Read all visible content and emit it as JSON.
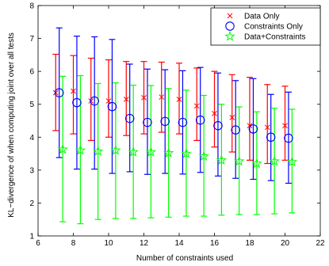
{
  "chart_data": {
    "type": "scatter",
    "title": "",
    "xlabel": "Number of constraints used",
    "ylabel": "KL−divergence of when computing joint over all tests",
    "xlim": [
      6,
      22
    ],
    "ylim": [
      1,
      8
    ],
    "xticks": [
      "6",
      "8",
      "10",
      "12",
      "14",
      "16",
      "18",
      "20",
      "22"
    ],
    "yticks": [
      "1",
      "2",
      "3",
      "4",
      "5",
      "6",
      "7",
      "8"
    ],
    "grid": false,
    "legend_position": "top-right",
    "series": [
      {
        "name": "Data Only",
        "marker": "x",
        "color": "#ff0000",
        "x": [
          7,
          8,
          9,
          10,
          11,
          12,
          13,
          14,
          15,
          16,
          17,
          18,
          19,
          20
        ],
        "y": [
          5.35,
          5.4,
          5.1,
          5.1,
          5.15,
          5.2,
          5.22,
          5.15,
          4.95,
          4.72,
          4.6,
          4.35,
          4.3,
          4.35
        ],
        "err_low": [
          4.2,
          4.1,
          3.9,
          4.0,
          4.05,
          4.1,
          4.15,
          4.1,
          3.9,
          3.7,
          3.55,
          3.3,
          3.2,
          3.3
        ],
        "err_high": [
          6.52,
          6.48,
          6.4,
          6.35,
          6.3,
          6.3,
          6.28,
          6.25,
          6.1,
          6.0,
          5.9,
          5.82,
          5.6,
          5.55
        ]
      },
      {
        "name": "Constraints Only",
        "marker": "o",
        "color": "#0000ff",
        "x": [
          7.2,
          8.2,
          9.2,
          10.2,
          11.2,
          12.2,
          13.2,
          14.2,
          15.2,
          16.2,
          17.2,
          18.2,
          19.2,
          20.2
        ],
        "y": [
          5.35,
          5.05,
          5.1,
          4.93,
          4.57,
          4.45,
          4.48,
          4.45,
          4.52,
          4.35,
          4.22,
          4.25,
          4.0,
          3.97
        ],
        "err_low": [
          3.38,
          3.03,
          3.03,
          2.9,
          2.95,
          2.87,
          2.9,
          2.88,
          2.93,
          2.82,
          2.75,
          2.72,
          2.68,
          2.6
        ],
        "err_high": [
          7.32,
          7.07,
          7.05,
          6.97,
          6.22,
          6.07,
          6.05,
          6.02,
          6.12,
          5.95,
          5.72,
          5.78,
          5.3,
          5.37
        ]
      },
      {
        "name": "Data+Constraints",
        "marker": "star",
        "color": "#00ff00",
        "x": [
          7.4,
          8.4,
          9.4,
          10.4,
          11.4,
          12.4,
          13.4,
          14.4,
          15.4,
          16.4,
          17.4,
          18.4,
          19.4,
          20.4
        ],
        "y": [
          3.63,
          3.6,
          3.57,
          3.6,
          3.55,
          3.55,
          3.52,
          3.5,
          3.42,
          3.3,
          3.27,
          3.2,
          3.27,
          3.25
        ],
        "err_low": [
          1.43,
          1.37,
          1.5,
          1.53,
          1.53,
          1.55,
          1.57,
          1.6,
          1.6,
          1.63,
          1.65,
          1.65,
          1.67,
          1.7
        ],
        "err_high": [
          5.85,
          5.87,
          5.63,
          5.65,
          5.58,
          5.57,
          5.48,
          5.43,
          5.27,
          5.0,
          4.92,
          4.77,
          4.88,
          4.85
        ]
      }
    ]
  }
}
